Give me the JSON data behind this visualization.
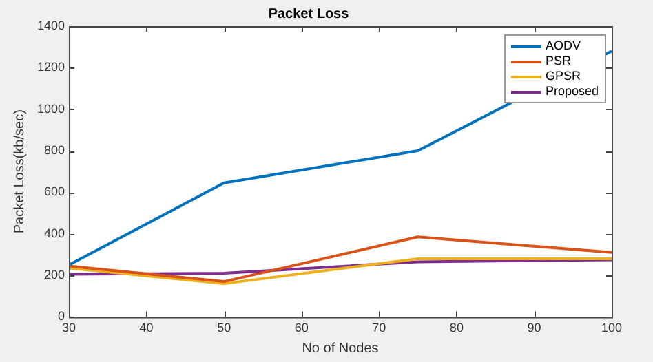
{
  "chart_data": {
    "type": "line",
    "title": "Packet Loss",
    "xlabel": "No of Nodes",
    "ylabel": "Packet Loss(kb/sec)",
    "x": [
      30,
      50,
      75,
      100
    ],
    "series": [
      {
        "name": "AODV",
        "color": "#0072bd",
        "values": [
          250,
          645,
          800,
          1280
        ]
      },
      {
        "name": "PSR",
        "color": "#d95319",
        "values": [
          245,
          170,
          385,
          310
        ]
      },
      {
        "name": "GPSR",
        "color": "#edb120",
        "values": [
          235,
          160,
          280,
          280
        ]
      },
      {
        "name": "Proposed",
        "color": "#7e2f8e",
        "values": [
          205,
          210,
          265,
          275
        ]
      }
    ],
    "xlim": [
      30,
      100
    ],
    "xticks": [
      30,
      40,
      50,
      60,
      70,
      80,
      90,
      100
    ],
    "ylim": [
      0,
      1400
    ],
    "yticks": [
      0,
      200,
      400,
      600,
      800,
      1000,
      1200,
      1400
    ],
    "grid": false,
    "legend": "top right",
    "marker": "none",
    "line_style": "solid"
  }
}
